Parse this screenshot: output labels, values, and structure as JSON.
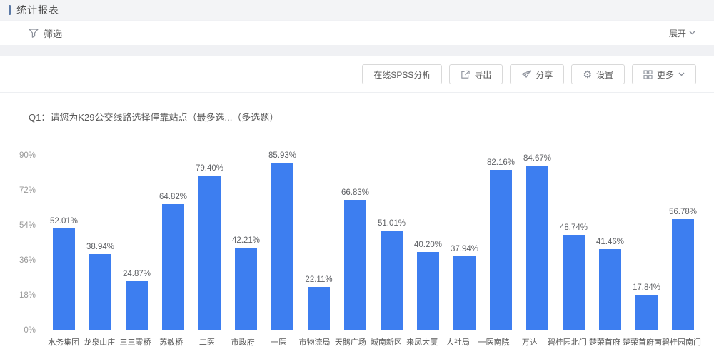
{
  "page": {
    "title": "统计报表"
  },
  "filter": {
    "label": "筛选",
    "expand_label": "展开"
  },
  "toolbar": {
    "buttons": [
      {
        "label": "在线SPSS分析"
      },
      {
        "label": "导出"
      },
      {
        "label": "分享"
      },
      {
        "label": "设置"
      },
      {
        "label": "更多"
      }
    ]
  },
  "question": {
    "title": "Q1：请您为K29公交线路选择停靠站点（最多选...（多选题）"
  },
  "chart_data": {
    "type": "bar",
    "title": "Q1：请您为K29公交线路选择停靠站点（最多选...（多选题）",
    "categories": [
      "水务集团",
      "龙泉山庄",
      "三三零桥",
      "苏敏桥",
      "二医",
      "市政府",
      "一医",
      "市物流局",
      "天鹅广场",
      "城南新区",
      "来凤大厦",
      "人社局",
      "一医南院",
      "万达",
      "碧桂园北门",
      "楚荣首府",
      "楚荣首府南",
      "碧桂园南门"
    ],
    "values": [
      52.01,
      38.94,
      24.87,
      64.82,
      79.4,
      42.21,
      85.93,
      22.11,
      66.83,
      51.01,
      40.2,
      37.94,
      82.16,
      84.67,
      48.74,
      41.46,
      17.84,
      56.78
    ],
    "value_labels": [
      "52.01%",
      "38.94%",
      "24.87%",
      "64.82%",
      "79.40%",
      "42.21%",
      "85.93%",
      "22.11%",
      "66.83%",
      "51.01%",
      "40.20%",
      "37.94%",
      "82.16%",
      "84.67%",
      "48.74%",
      "41.46%",
      "17.84%",
      "56.78%"
    ],
    "xlabel": "",
    "ylabel": "",
    "ylim": [
      0,
      90
    ],
    "yticks": [
      "0%",
      "18%",
      "36%",
      "54%",
      "72%",
      "90%"
    ],
    "grid": false,
    "legend": "none",
    "bar_color": "#3d7ef0"
  },
  "colors": {
    "accent": "#5b79a6",
    "bar": "#3d7ef0",
    "card_bg": "#ffffff",
    "page_bg": "#f0f1f4",
    "button_border": "#d9d9d9",
    "text": "#595959"
  }
}
